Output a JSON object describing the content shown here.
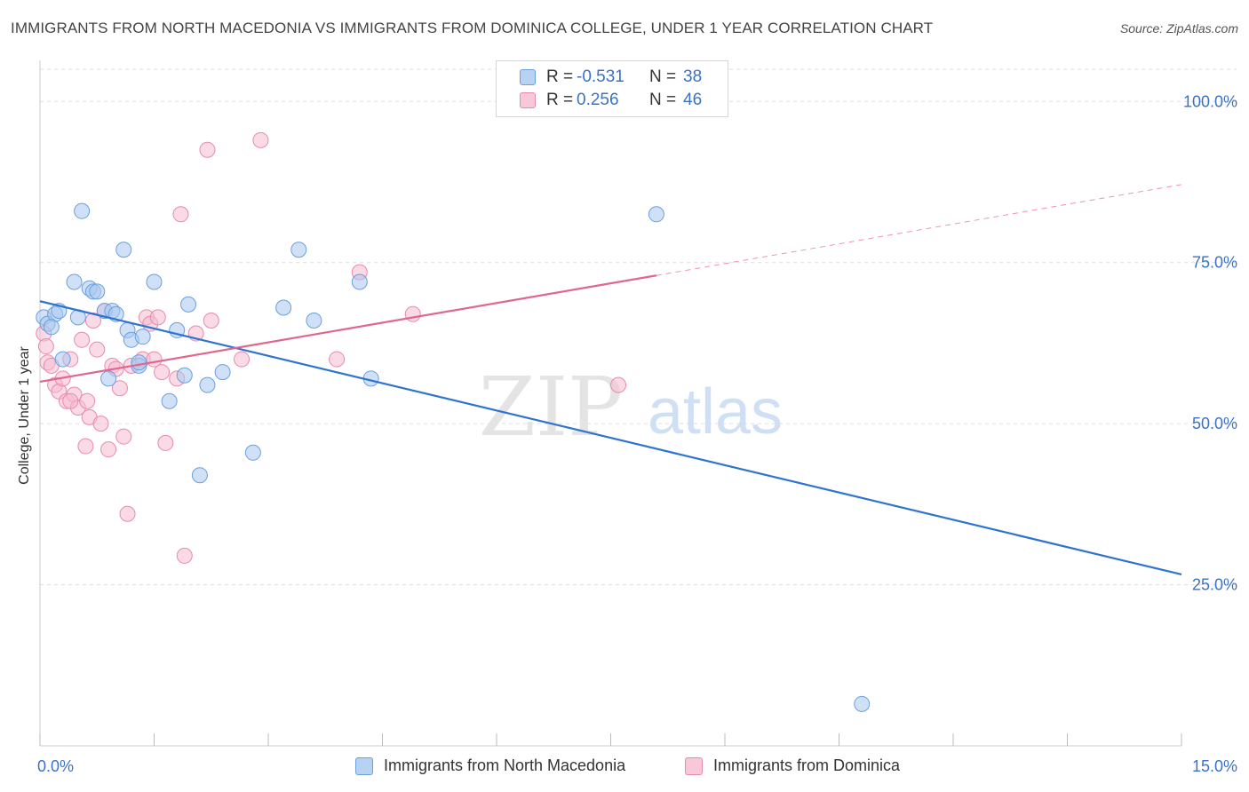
{
  "title": "IMMIGRANTS FROM NORTH MACEDONIA VS IMMIGRANTS FROM DOMINICA COLLEGE, UNDER 1 YEAR CORRELATION CHART",
  "source": "Source: ZipAtlas.com",
  "watermark": {
    "zip": "ZIP",
    "atlas": "atlas"
  },
  "legend": {
    "rows": [
      {
        "r_label": "R =",
        "r_value": "-0.531",
        "n_label": "N =",
        "n_value": "38"
      },
      {
        "r_label": "R =",
        "r_value": "0.256",
        "n_label": "N =",
        "n_value": "46"
      }
    ]
  },
  "colors": {
    "blue_fill": "#a9c8f0",
    "blue_stroke": "#6a9fe0",
    "blue_line": "#2f73d1",
    "pink_fill": "#f6bcd0",
    "pink_stroke": "#e98aab",
    "pink_line": "#e0668f",
    "tick_label": "#3a72c9",
    "grid": "#dddddd"
  },
  "chart_data": {
    "type": "scatter",
    "title": "IMMIGRANTS FROM NORTH MACEDONIA VS IMMIGRANTS FROM DOMINICA COLLEGE, UNDER 1 YEAR CORRELATION CHART",
    "xlabel": "",
    "ylabel": "College, Under 1 year",
    "xlim": [
      0,
      15
    ],
    "ylim": [
      0,
      105
    ],
    "x_tick_labels": [
      "0.0%",
      "15.0%"
    ],
    "y_ticks": [
      25,
      50,
      75,
      100
    ],
    "y_tick_labels": [
      "25.0%",
      "50.0%",
      "75.0%",
      "100.0%"
    ],
    "grid": true,
    "legend_position": "bottom",
    "series": [
      {
        "name": "Immigrants from North Macedonia",
        "color": "#a9c8f0",
        "trend": {
          "x": [
            0,
            15
          ],
          "y": [
            69.0,
            26.6
          ]
        },
        "points": [
          [
            0.05,
            66.5
          ],
          [
            0.1,
            65.5
          ],
          [
            0.2,
            67.0
          ],
          [
            0.25,
            67.5
          ],
          [
            0.3,
            60.0
          ],
          [
            0.45,
            72.0
          ],
          [
            0.5,
            66.5
          ],
          [
            0.55,
            83.0
          ],
          [
            0.65,
            71.0
          ],
          [
            0.7,
            70.5
          ],
          [
            0.75,
            70.5
          ],
          [
            0.85,
            67.5
          ],
          [
            0.9,
            57.0
          ],
          [
            0.95,
            67.5
          ],
          [
            1.0,
            67.0
          ],
          [
            1.1,
            77.0
          ],
          [
            1.15,
            64.5
          ],
          [
            1.2,
            63.0
          ],
          [
            1.3,
            59.0
          ],
          [
            1.35,
            63.5
          ],
          [
            1.5,
            72.0
          ],
          [
            1.7,
            53.5
          ],
          [
            1.8,
            64.5
          ],
          [
            1.9,
            57.5
          ],
          [
            1.95,
            68.5
          ],
          [
            2.1,
            42.0
          ],
          [
            2.2,
            56.0
          ],
          [
            2.4,
            58.0
          ],
          [
            2.8,
            45.5
          ],
          [
            3.2,
            68.0
          ],
          [
            3.4,
            77.0
          ],
          [
            3.6,
            66.0
          ],
          [
            4.2,
            72.0
          ],
          [
            4.35,
            57.0
          ],
          [
            8.1,
            82.5
          ],
          [
            10.8,
            6.5
          ],
          [
            0.15,
            65.0
          ],
          [
            1.3,
            59.5
          ]
        ]
      },
      {
        "name": "Immigrants from Dominica",
        "color": "#f6bcd0",
        "trend": {
          "x": [
            0,
            8.1
          ],
          "y": [
            56.5,
            73.0
          ]
        },
        "trend_dashed": {
          "x": [
            8.1,
            15
          ],
          "y": [
            73.0,
            87.1
          ]
        },
        "points": [
          [
            0.05,
            64.0
          ],
          [
            0.08,
            62.0
          ],
          [
            0.1,
            59.5
          ],
          [
            0.15,
            59.0
          ],
          [
            0.2,
            56.0
          ],
          [
            0.25,
            55.0
          ],
          [
            0.3,
            57.0
          ],
          [
            0.35,
            53.5
          ],
          [
            0.4,
            60.0
          ],
          [
            0.45,
            54.5
          ],
          [
            0.5,
            52.5
          ],
          [
            0.55,
            63.0
          ],
          [
            0.6,
            46.5
          ],
          [
            0.62,
            53.5
          ],
          [
            0.65,
            51.0
          ],
          [
            0.7,
            66.0
          ],
          [
            0.75,
            61.5
          ],
          [
            0.8,
            50.0
          ],
          [
            0.85,
            67.5
          ],
          [
            0.9,
            46.0
          ],
          [
            0.95,
            59.0
          ],
          [
            1.0,
            58.5
          ],
          [
            1.05,
            55.5
          ],
          [
            1.1,
            48.0
          ],
          [
            1.15,
            36.0
          ],
          [
            1.2,
            59.0
          ],
          [
            1.35,
            60.0
          ],
          [
            1.4,
            66.5
          ],
          [
            1.45,
            65.5
          ],
          [
            1.55,
            66.5
          ],
          [
            1.6,
            58.0
          ],
          [
            1.65,
            47.0
          ],
          [
            1.8,
            57.0
          ],
          [
            1.85,
            82.5
          ],
          [
            1.9,
            29.5
          ],
          [
            2.05,
            64.0
          ],
          [
            2.2,
            92.5
          ],
          [
            2.25,
            66.0
          ],
          [
            2.65,
            60.0
          ],
          [
            2.9,
            94.0
          ],
          [
            3.9,
            60.0
          ],
          [
            4.2,
            73.5
          ],
          [
            4.9,
            67.0
          ],
          [
            7.6,
            56.0
          ],
          [
            0.4,
            53.5
          ],
          [
            1.5,
            60.0
          ]
        ]
      }
    ]
  }
}
